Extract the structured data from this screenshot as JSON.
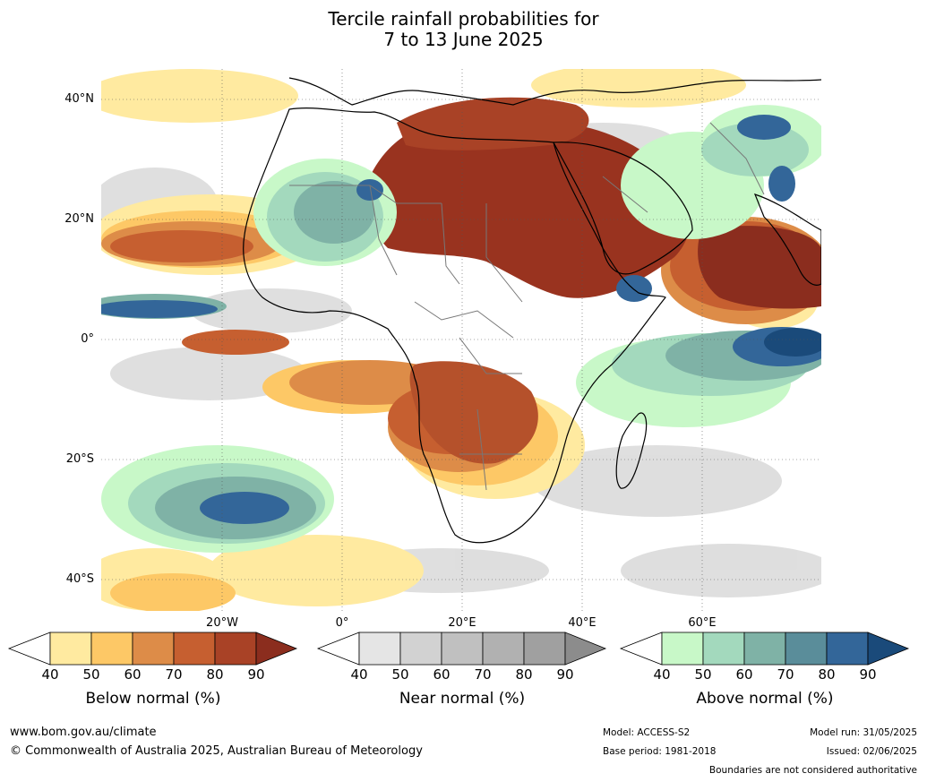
{
  "title_line1": "Tercile rainfall probabilities for",
  "title_line2": "7 to 13 June 2025",
  "map": {
    "lat_labels": [
      "40°N",
      "20°N",
      "0°",
      "20°S",
      "40°S"
    ],
    "lon_labels": [
      "20°W",
      "0°",
      "20°E",
      "40°E",
      "60°E"
    ]
  },
  "colorbars": [
    {
      "title": "Below normal (%)",
      "ticks": [
        "40",
        "50",
        "60",
        "70",
        "80",
        "90"
      ],
      "colors": [
        "#ffffff",
        "#ffeaa0",
        "#fdc866",
        "#dd8c48",
        "#c65f30",
        "#a94226",
        "#8b2d1e"
      ]
    },
    {
      "title": "Near normal (%)",
      "ticks": [
        "40",
        "50",
        "60",
        "70",
        "80",
        "90"
      ],
      "colors": [
        "#ffffff",
        "#e5e5e5",
        "#d2d2d2",
        "#c0c0c0",
        "#b1b1b1",
        "#a0a0a0",
        "#8c8c8c"
      ]
    },
    {
      "title": "Above normal (%)",
      "ticks": [
        "40",
        "50",
        "60",
        "70",
        "80",
        "90"
      ],
      "colors": [
        "#ffffff",
        "#c8f8c8",
        "#a3d9bd",
        "#7fb2a6",
        "#5a8d9a",
        "#336699",
        "#1a4a7a"
      ]
    }
  ],
  "footer": {
    "website": "www.bom.gov.au/climate",
    "copyright": "© Commonwealth of Australia 2025, Australian Bureau of Meteorology",
    "model": "Model: ACCESS-S2",
    "base_period": "Base period: 1981-2018",
    "model_run": "Model run: 31/05/2025",
    "issued": "Issued: 02/06/2025",
    "disclaimer": "Boundaries are not considered authoritative"
  }
}
